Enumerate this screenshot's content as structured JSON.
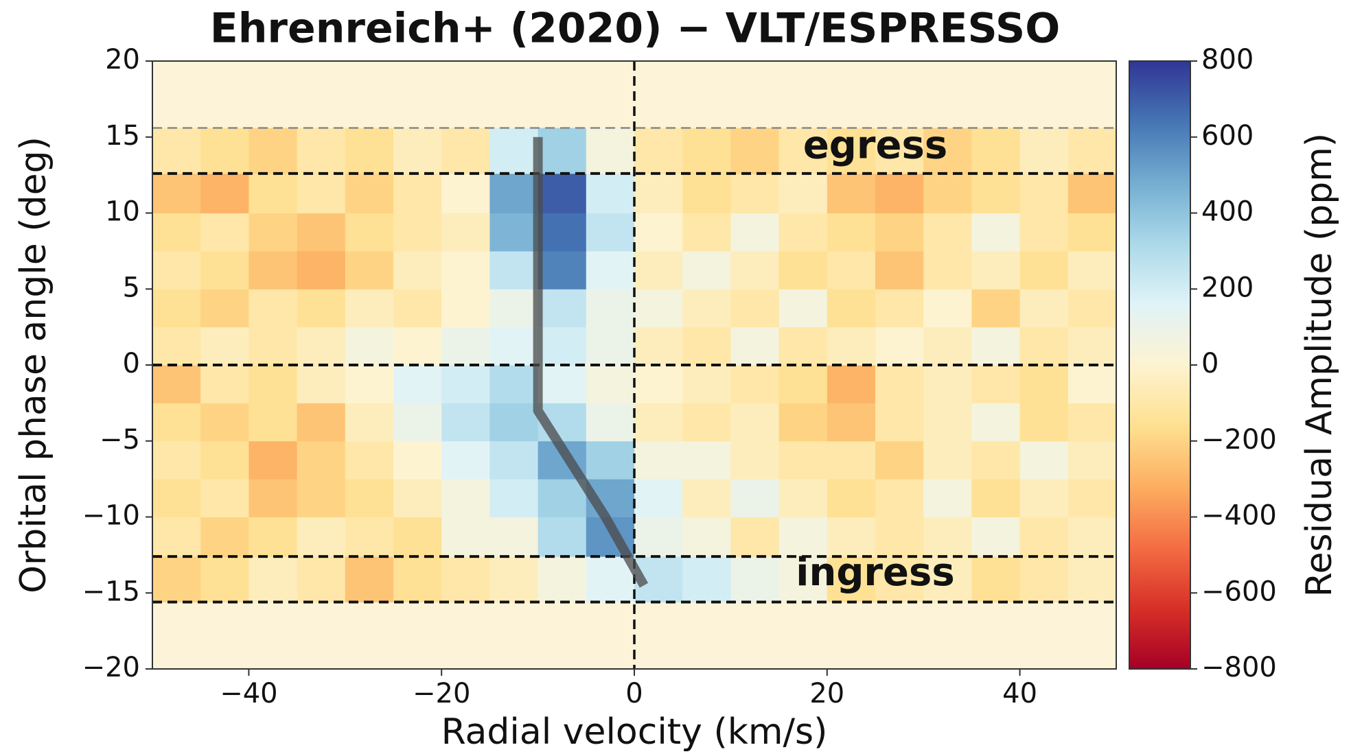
{
  "chart_data": {
    "type": "heatmap",
    "title": "Ehrenreich+ (2020) − VLT/ESPRESSO",
    "xlabel": "Radial velocity (km/s)",
    "ylabel": "Orbital phase angle (deg)",
    "colorbar_label": "Residual Amplitude (ppm)",
    "xlim": [
      -50,
      50
    ],
    "ylim": [
      -20,
      20
    ],
    "xticks": [
      {
        "value": -40,
        "label": "−40"
      },
      {
        "value": -20,
        "label": "−20"
      },
      0,
      20,
      40
    ],
    "yticks": [
      {
        "value": -20,
        "label": "−20"
      },
      {
        "value": -15,
        "label": "−15"
      },
      {
        "value": -10,
        "label": "−10"
      },
      {
        "value": -5,
        "label": "−5"
      },
      0,
      5,
      10,
      15,
      20
    ],
    "clim": [
      -800,
      800
    ],
    "cticks": [
      {
        "value": -800,
        "label": "−800"
      },
      {
        "value": -600,
        "label": "−600"
      },
      {
        "value": -400,
        "label": "−400"
      },
      {
        "value": -200,
        "label": "−200"
      },
      0,
      200,
      400,
      600,
      800
    ],
    "colormap": [
      "#a50026",
      "#d73027",
      "#f46d43",
      "#fdae61",
      "#fee090",
      "#fdf3d0",
      "#e0f3f8",
      "#abd9e9",
      "#74add1",
      "#4575b4",
      "#313695"
    ],
    "background": "#fdf3d8",
    "x_edges": [
      -50,
      -45,
      -40,
      -35,
      -30,
      -25,
      -20,
      -15,
      -10,
      -5,
      0,
      5,
      10,
      15,
      20,
      25,
      30,
      35,
      40,
      45,
      50
    ],
    "y_edges": [
      -15.6,
      -12.6,
      -10,
      -7.5,
      -5,
      -2.5,
      0,
      2.5,
      5,
      7.5,
      10,
      12.6,
      15.6
    ],
    "z": [
      [
        -200,
        -150,
        -50,
        -100,
        -250,
        -150,
        -100,
        -50,
        50,
        150,
        250,
        200,
        100,
        50,
        -150,
        -100,
        -50,
        -150,
        -100,
        -50
      ],
      [
        -100,
        -200,
        -150,
        -50,
        -100,
        -150,
        50,
        50,
        300,
        550,
        100,
        50,
        -100,
        50,
        -50,
        -100,
        -50,
        50,
        -100,
        -50
      ],
      [
        -150,
        -100,
        -250,
        -200,
        -150,
        -50,
        50,
        200,
        350,
        500,
        150,
        -50,
        100,
        -50,
        -150,
        -100,
        50,
        -150,
        -50,
        -100
      ],
      [
        -100,
        -150,
        -300,
        -200,
        -100,
        0,
        150,
        250,
        500,
        350,
        50,
        50,
        -50,
        -100,
        -100,
        -200,
        -50,
        -100,
        50,
        -50
      ],
      [
        -150,
        -200,
        -150,
        -250,
        -50,
        100,
        250,
        350,
        300,
        100,
        -50,
        -100,
        -50,
        -200,
        -250,
        -100,
        -50,
        50,
        -150,
        -100
      ],
      [
        -250,
        -100,
        -150,
        -50,
        0,
        150,
        200,
        300,
        150,
        50,
        0,
        -50,
        -100,
        -150,
        -300,
        -100,
        -50,
        -100,
        -150,
        0
      ],
      [
        -100,
        -50,
        -100,
        -50,
        50,
        0,
        100,
        150,
        200,
        100,
        -50,
        -100,
        50,
        -100,
        -50,
        0,
        -50,
        50,
        -100,
        -50
      ],
      [
        -150,
        -200,
        -100,
        -150,
        -50,
        -100,
        0,
        100,
        250,
        100,
        50,
        -50,
        -100,
        50,
        -150,
        -100,
        0,
        -200,
        -50,
        -100
      ],
      [
        -100,
        -150,
        -250,
        -300,
        -200,
        -50,
        0,
        250,
        600,
        150,
        -50,
        50,
        -50,
        -150,
        -100,
        -250,
        -100,
        -50,
        -150,
        -50
      ],
      [
        -150,
        -100,
        -200,
        -250,
        -150,
        -100,
        -50,
        450,
        650,
        250,
        0,
        -100,
        50,
        -100,
        -150,
        -200,
        -100,
        50,
        -100,
        -150
      ],
      [
        -250,
        -300,
        -150,
        -100,
        -200,
        -100,
        0,
        500,
        700,
        200,
        -50,
        -150,
        -100,
        -50,
        -250,
        -300,
        -200,
        -150,
        -100,
        -250
      ],
      [
        -100,
        -150,
        -200,
        -100,
        -150,
        -50,
        -100,
        200,
        350,
        50,
        -100,
        -150,
        -200,
        -100,
        -150,
        -100,
        -200,
        -150,
        -50,
        -100
      ]
    ],
    "series": [
      {
        "x": [
          -10,
          -10,
          -6,
          -3,
          1
        ],
        "y": [
          15,
          -3,
          -7,
          -10,
          -14.5
        ],
        "color": "#4a4a4a"
      }
    ],
    "hlines": [
      {
        "y": 15.6,
        "color": "#888888"
      },
      {
        "y": 12.6,
        "color": "#111111"
      },
      {
        "y": 0,
        "color": "#111111"
      },
      {
        "y": -12.6,
        "color": "#111111"
      },
      {
        "y": -15.6,
        "color": "#111111"
      }
    ],
    "vlines": [
      {
        "x": 0,
        "color": "#111111"
      }
    ],
    "annotations": [
      {
        "text": "egress",
        "x": 25,
        "y": 14.3
      },
      {
        "text": "ingress",
        "x": 25,
        "y": -13.8
      }
    ]
  }
}
